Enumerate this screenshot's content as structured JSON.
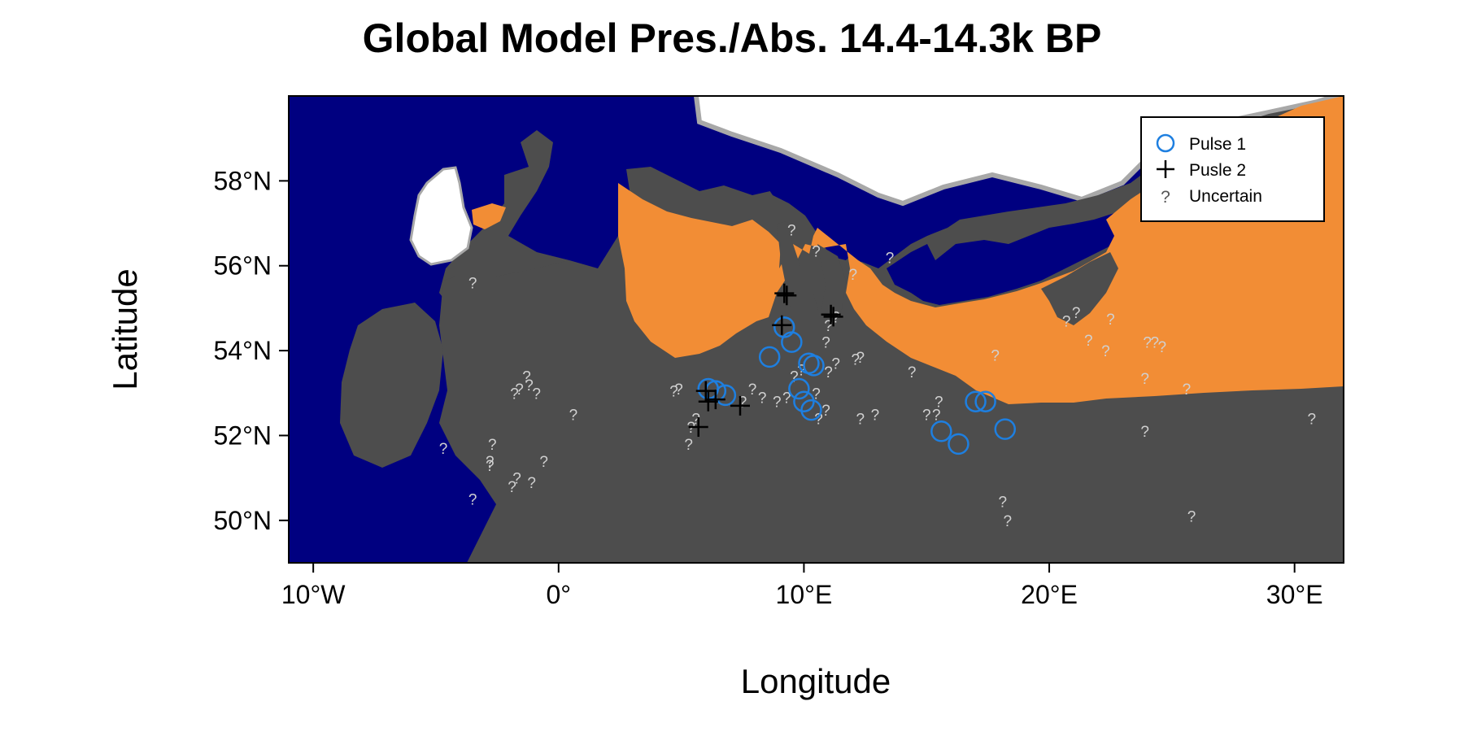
{
  "title": "Global Model Pres./Abs. 14.4-14.3k BP",
  "colors": {
    "sea": "#000080",
    "land_absent": "#4d4d4d",
    "land_present": "#f28d35",
    "ice": "#ffffff",
    "pulse1": "#1e7fe0",
    "pulse2": "#000000",
    "uncertain": "#d0d0d0"
  },
  "chart_data": {
    "type": "scatter",
    "title": "Global Model Pres./Abs. 14.4-14.3k BP",
    "xlabel": "Longitude",
    "ylabel": "Latitude",
    "xlim": [
      -11,
      32
    ],
    "ylim": [
      49,
      60
    ],
    "xticks": [
      {
        "value": -10,
        "label": "10°W"
      },
      {
        "value": 0,
        "label": "0°"
      },
      {
        "value": 10,
        "label": "10°E"
      },
      {
        "value": 20,
        "label": "20°E"
      },
      {
        "value": 30,
        "label": "30°E"
      }
    ],
    "yticks": [
      {
        "value": 50,
        "label": "50°N"
      },
      {
        "value": 52,
        "label": "52°N"
      },
      {
        "value": 54,
        "label": "54°N"
      },
      {
        "value": 56,
        "label": "56°N"
      },
      {
        "value": 58,
        "label": "58°N"
      }
    ],
    "legend": {
      "position": "top-right",
      "entries": [
        {
          "label": "Pulse 1",
          "symbol": "circle"
        },
        {
          "label": "Pusle 2",
          "symbol": "plus"
        },
        {
          "label": "Uncertain",
          "symbol": "?"
        }
      ]
    },
    "series": [
      {
        "name": "Pulse 1",
        "points": [
          [
            6.1,
            53.1
          ],
          [
            6.4,
            53.05
          ],
          [
            6.8,
            52.95
          ],
          [
            8.6,
            53.85
          ],
          [
            9.2,
            54.55
          ],
          [
            9.5,
            54.2
          ],
          [
            10.2,
            53.7
          ],
          [
            10.4,
            53.65
          ],
          [
            9.8,
            53.1
          ],
          [
            10.0,
            52.8
          ],
          [
            10.3,
            52.6
          ],
          [
            15.6,
            52.1
          ],
          [
            16.3,
            51.8
          ],
          [
            17.0,
            52.8
          ],
          [
            17.4,
            52.8
          ],
          [
            18.2,
            52.15
          ]
        ]
      },
      {
        "name": "Pusle 2",
        "points": [
          [
            9.2,
            55.35
          ],
          [
            9.3,
            55.3
          ],
          [
            11.2,
            54.8
          ],
          [
            11.1,
            54.85
          ],
          [
            9.1,
            54.6
          ],
          [
            6.0,
            53.05
          ],
          [
            6.1,
            52.8
          ],
          [
            6.4,
            52.85
          ],
          [
            7.4,
            52.7
          ],
          [
            5.7,
            52.2
          ]
        ]
      },
      {
        "name": "Uncertain",
        "points": [
          [
            -3.5,
            55.6
          ],
          [
            -4.7,
            51.7
          ],
          [
            -2.7,
            51.8
          ],
          [
            -2.8,
            51.4
          ],
          [
            -2.8,
            51.3
          ],
          [
            -3.5,
            50.5
          ],
          [
            -1.7,
            51.0
          ],
          [
            -1.9,
            50.8
          ],
          [
            -1.1,
            50.9
          ],
          [
            -0.6,
            51.4
          ],
          [
            0.6,
            52.5
          ],
          [
            -1.8,
            53.0
          ],
          [
            -1.6,
            53.1
          ],
          [
            -1.3,
            53.4
          ],
          [
            -0.9,
            53.0
          ],
          [
            -1.2,
            53.2
          ],
          [
            4.7,
            53.05
          ],
          [
            4.9,
            53.1
          ],
          [
            5.4,
            52.2
          ],
          [
            5.6,
            52.4
          ],
          [
            5.3,
            51.8
          ],
          [
            7.5,
            52.8
          ],
          [
            7.9,
            53.1
          ],
          [
            8.3,
            52.9
          ],
          [
            8.9,
            52.8
          ],
          [
            9.3,
            52.9
          ],
          [
            9.6,
            53.4
          ],
          [
            9.9,
            53.55
          ],
          [
            10.5,
            53.0
          ],
          [
            10.6,
            52.4
          ],
          [
            10.9,
            52.6
          ],
          [
            11.0,
            53.5
          ],
          [
            11.3,
            53.7
          ],
          [
            10.9,
            54.2
          ],
          [
            11.0,
            54.6
          ],
          [
            11.3,
            54.8
          ],
          [
            12.1,
            53.8
          ],
          [
            12.3,
            53.85
          ],
          [
            12.0,
            55.8
          ],
          [
            9.5,
            56.85
          ],
          [
            10.5,
            56.35
          ],
          [
            13.5,
            56.2
          ],
          [
            12.3,
            52.4
          ],
          [
            12.9,
            52.5
          ],
          [
            14.4,
            53.5
          ],
          [
            15.0,
            52.5
          ],
          [
            15.4,
            52.5
          ],
          [
            15.5,
            52.8
          ],
          [
            17.8,
            53.9
          ],
          [
            20.7,
            54.7
          ],
          [
            21.1,
            54.9
          ],
          [
            21.6,
            54.25
          ],
          [
            22.3,
            54.0
          ],
          [
            22.5,
            54.75
          ],
          [
            24.0,
            54.2
          ],
          [
            24.3,
            54.2
          ],
          [
            24.6,
            54.1
          ],
          [
            23.9,
            53.35
          ],
          [
            25.6,
            53.1
          ],
          [
            23.9,
            52.1
          ],
          [
            25.8,
            50.1
          ],
          [
            18.1,
            50.45
          ],
          [
            18.3,
            50.0
          ],
          [
            30.7,
            52.4
          ]
        ]
      }
    ]
  },
  "axes": {
    "x_title": "Longitude",
    "y_title": "Latitude"
  }
}
